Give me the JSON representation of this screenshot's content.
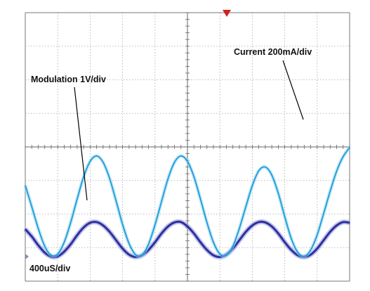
{
  "chart_data": {
    "type": "line",
    "title": "",
    "xlabel": "",
    "ylabel": "",
    "grid": true,
    "divisions": {
      "x": 10,
      "y": 8
    },
    "xlim": [
      0,
      10
    ],
    "ylim": [
      0,
      8
    ],
    "annotations": {
      "current": "Current 200mA/div",
      "modulation": "Modulation 1V/div",
      "timebase": "400uS/div"
    },
    "series": [
      {
        "name": "Current 200mA/div",
        "color": "#1e9bd7",
        "glow": "#8fd6f5",
        "x": [
          0.0,
          0.2,
          0.4,
          0.6,
          0.8,
          1.0,
          1.2,
          1.4,
          1.6,
          1.8,
          2.0,
          2.2,
          2.4,
          2.6,
          2.8,
          3.0,
          3.2,
          3.4,
          3.6,
          3.8,
          4.0,
          4.2,
          4.4,
          4.6,
          4.8,
          5.0,
          5.2,
          5.4,
          5.6,
          5.8,
          6.0,
          6.2,
          6.4,
          6.6,
          6.8,
          7.0,
          7.2,
          7.4,
          7.6,
          7.8,
          8.0,
          8.2,
          8.4,
          8.6,
          8.8,
          9.0,
          9.2,
          9.4,
          9.6,
          9.8,
          10.0
        ],
        "y": [
          2.85,
          2.22,
          1.57,
          1.04,
          0.77,
          0.81,
          1.16,
          1.75,
          2.45,
          3.11,
          3.57,
          3.73,
          3.54,
          3.06,
          2.39,
          1.69,
          1.12,
          0.79,
          0.78,
          1.1,
          1.68,
          2.37,
          3.05,
          3.54,
          3.73,
          3.57,
          3.11,
          2.45,
          1.75,
          1.16,
          0.81,
          0.77,
          1.04,
          1.57,
          2.22,
          2.85,
          3.29,
          3.4,
          3.16,
          2.62,
          1.92,
          1.27,
          0.86,
          0.74,
          0.93,
          1.38,
          2.02,
          2.68,
          3.28,
          3.71,
          3.98
        ]
      },
      {
        "name": "Modulation 1V/div",
        "color": "#2e2f9e",
        "glow": "#8d92dc",
        "x": [
          0.0,
          0.2,
          0.4,
          0.6,
          0.8,
          1.0,
          1.2,
          1.4,
          1.6,
          1.8,
          2.0,
          2.2,
          2.4,
          2.6,
          2.8,
          3.0,
          3.2,
          3.4,
          3.6,
          3.8,
          4.0,
          4.2,
          4.4,
          4.6,
          4.8,
          5.0,
          5.2,
          5.4,
          5.6,
          5.8,
          6.0,
          6.2,
          6.4,
          6.6,
          6.8,
          7.0,
          7.2,
          7.4,
          7.6,
          7.8,
          8.0,
          8.2,
          8.4,
          8.6,
          8.8,
          9.0,
          9.2,
          9.4,
          9.6,
          9.8,
          10.0
        ],
        "y": [
          1.55,
          1.33,
          1.07,
          0.85,
          0.73,
          0.74,
          0.88,
          1.1,
          1.37,
          1.6,
          1.74,
          1.76,
          1.66,
          1.47,
          1.22,
          0.97,
          0.79,
          0.72,
          0.77,
          0.93,
          1.16,
          1.42,
          1.63,
          1.75,
          1.76,
          1.63,
          1.42,
          1.16,
          0.93,
          0.77,
          0.72,
          0.79,
          0.97,
          1.22,
          1.47,
          1.66,
          1.76,
          1.75,
          1.63,
          1.42,
          1.16,
          0.93,
          0.77,
          0.72,
          0.79,
          0.97,
          1.22,
          1.47,
          1.66,
          1.76,
          1.74
        ]
      }
    ]
  }
}
